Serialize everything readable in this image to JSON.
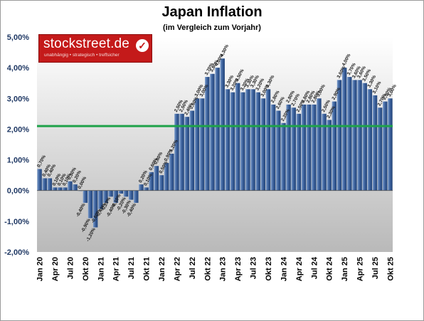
{
  "title": "Japan Inflation",
  "subtitle": "(im Vergleich zum Vorjahr)",
  "logo": {
    "name": "stockstreet.de",
    "tagline": "unabhängig • strategisch • treffsicher",
    "check_icon": "check-icon"
  },
  "colors": {
    "bar": "#3a5f9a",
    "bar_light": "#7a9ccc",
    "reference_line": "#1fa24a",
    "plot_bg_top": "#ffffff",
    "plot_bg_bottom": "#b9b9b9",
    "axis_text": "#1f3864"
  },
  "chart_data": {
    "type": "bar",
    "title": "Japan Inflation",
    "subtitle": "(im Vergleich zum Vorjahr)",
    "ylim": [
      -2,
      5
    ],
    "yticks": [
      "5,00%",
      "4,00%",
      "3,00%",
      "2,00%",
      "1,00%",
      "0,00%",
      "-1,00%",
      "-2,00%"
    ],
    "ytick_values": [
      5,
      4,
      3,
      2,
      1,
      0,
      -1,
      -2
    ],
    "reference_line": 2.1,
    "grid": false,
    "xtick_labels": [
      {
        "index": 0,
        "label": "Jan 20"
      },
      {
        "index": 3,
        "label": "Apr 20"
      },
      {
        "index": 6,
        "label": "Jul 20"
      },
      {
        "index": 9,
        "label": "Okt 20"
      },
      {
        "index": 12,
        "label": "Jan 21"
      },
      {
        "index": 15,
        "label": "Apr 21"
      },
      {
        "index": 18,
        "label": "Jul 21"
      },
      {
        "index": 21,
        "label": "Okt 21"
      },
      {
        "index": 24,
        "label": "Jan 22"
      },
      {
        "index": 27,
        "label": "Apr 22"
      },
      {
        "index": 30,
        "label": "Jul 22"
      },
      {
        "index": 33,
        "label": "Okt 22"
      },
      {
        "index": 36,
        "label": "Jan 23"
      },
      {
        "index": 39,
        "label": "Apr 23"
      },
      {
        "index": 42,
        "label": "Jul 23"
      },
      {
        "index": 45,
        "label": "Okt 23"
      },
      {
        "index": 48,
        "label": "Jan 24"
      },
      {
        "index": 51,
        "label": "Apr 24"
      },
      {
        "index": 54,
        "label": "Jul 24"
      },
      {
        "index": 57,
        "label": "Okt 24"
      },
      {
        "index": 60,
        "label": "Jan 25"
      },
      {
        "index": 63,
        "label": "Apr 25"
      },
      {
        "index": 66,
        "label": "Jul 25"
      },
      {
        "index": 69,
        "label": "Okt 25"
      }
    ],
    "values": [
      0.7,
      0.4,
      0.4,
      0.1,
      0.1,
      0.1,
      0.3,
      0.2,
      0.0,
      -0.4,
      -0.9,
      -1.2,
      -0.6,
      -0.4,
      -0.2,
      -0.4,
      -0.1,
      -0.2,
      -0.3,
      -0.4,
      0.2,
      0.1,
      0.6,
      0.8,
      0.5,
      0.9,
      1.2,
      2.5,
      2.5,
      2.4,
      2.6,
      3.0,
      3.0,
      3.7,
      3.8,
      4.0,
      4.3,
      3.3,
      3.2,
      3.5,
      3.2,
      3.3,
      3.3,
      3.2,
      3.0,
      3.3,
      2.8,
      2.6,
      2.2,
      2.8,
      2.7,
      2.5,
      2.8,
      2.8,
      2.8,
      3.0,
      2.5,
      2.3,
      2.9,
      3.6,
      4.0,
      3.7,
      3.6,
      3.6,
      3.5,
      3.3,
      3.1,
      2.7,
      2.9,
      3.0
    ],
    "labels": [
      "0,70%",
      "0,40%",
      "0,40%",
      "0,10%",
      "0,10%",
      "0,10%",
      "0,30%",
      "0,20%",
      "0,00%",
      "-0,40%",
      "-0,90%",
      "-1,20%",
      "-0,60%",
      "-0,40%",
      "-0,20%",
      "-0,40%",
      "-0,10%",
      "-0,20%",
      "-0,30%",
      "-0,40%",
      "0,20%",
      "0,10%",
      "0,60%",
      "0,80%",
      "0,50%",
      "0,90%",
      "1,20%",
      "2,50%",
      "2,50%",
      "2,40%",
      "2,60%",
      "3,00%",
      "3,00%",
      "3,70%",
      "3,80%",
      "4,00%",
      "4,30%",
      "3,30%",
      "3,20%",
      "3,50%",
      "3,20%",
      "3,30%",
      "3,30%",
      "3,20%",
      "3,00%",
      "3,30%",
      "2,80%",
      "2,60%",
      "2,20%",
      "2,80%",
      "2,70%",
      "2,50%",
      "2,80%",
      "2,80%",
      "2,80%",
      "3,00%",
      "2,50%",
      "2,30%",
      "2,90%",
      "3,60%",
      "4,00%",
      "3,70%",
      "3,60%",
      "3,60%",
      "3,50%",
      "3,30%",
      "3,10%",
      "2,70%",
      "2,90%",
      "3,00%"
    ]
  }
}
